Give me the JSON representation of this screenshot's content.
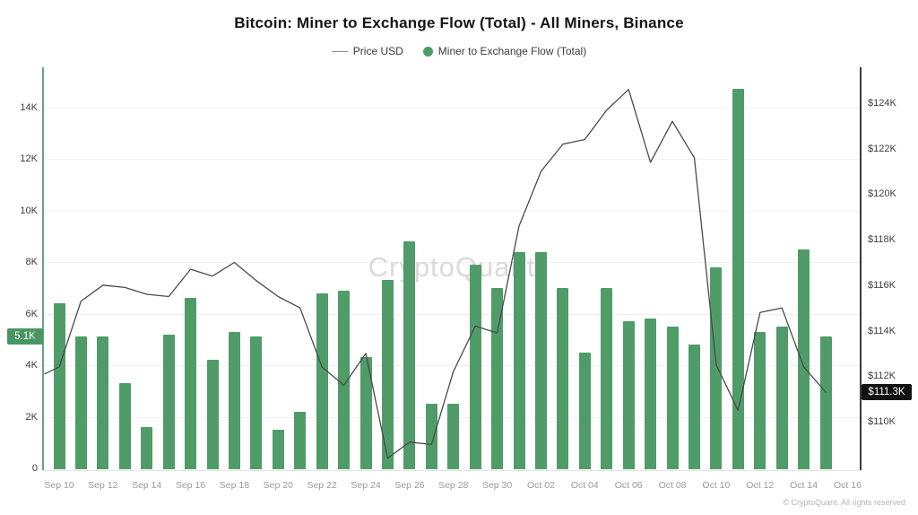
{
  "title": "Bitcoin: Miner to Exchange Flow (Total) - All Miners, Binance",
  "watermark": "CryptoQuant",
  "copyright": "© CryptoQuant. All rights reserved",
  "colors": {
    "bar_green": "#4f9c68",
    "badge_green": "#4a9662",
    "price_line": "#4a4a4a",
    "left_axis_line": "#61a77f",
    "right_axis_line": "#3a3a3a",
    "watermark_gray": "#dadada"
  },
  "legend": [
    {
      "label": "Price USD",
      "marker": "dash",
      "color": "#8a8a8a"
    },
    {
      "label": "Miner to Exchange Flow (Total)",
      "marker": "dot",
      "color": "#4f9c68"
    }
  ],
  "badges": {
    "flow_current": "5.1K",
    "flow_current_value": 5.1,
    "price_current": "$111.3K",
    "price_current_value": 111.3
  },
  "chart_data": {
    "type": "bar+line",
    "title": "Bitcoin: Miner to Exchange Flow (Total) - All Miners, Binance",
    "categories": [
      "Sep 10",
      "Sep 11",
      "Sep 12",
      "Sep 13",
      "Sep 14",
      "Sep 15",
      "Sep 16",
      "Sep 17",
      "Sep 18",
      "Sep 19",
      "Sep 20",
      "Sep 21",
      "Sep 22",
      "Sep 23",
      "Sep 24",
      "Sep 25",
      "Sep 26",
      "Sep 27",
      "Sep 28",
      "Sep 29",
      "Sep 30",
      "Oct 01",
      "Oct 02",
      "Oct 03",
      "Oct 04",
      "Oct 05",
      "Oct 06",
      "Oct 07",
      "Oct 08",
      "Oct 09",
      "Oct 10",
      "Oct 11",
      "Oct 12",
      "Oct 13",
      "Oct 14",
      "Oct 15"
    ],
    "x_tick_labels": [
      "Sep 10",
      "Sep 12",
      "Sep 14",
      "Sep 16",
      "Sep 18",
      "Sep 20",
      "Sep 22",
      "Sep 24",
      "Sep 26",
      "Sep 28",
      "Sep 30",
      "Oct 02",
      "Oct 04",
      "Oct 06",
      "Oct 08",
      "Oct 10",
      "Oct 12",
      "Oct 14",
      "Oct 16"
    ],
    "series": [
      {
        "name": "Miner to Exchange Flow (Total)",
        "type": "bar",
        "axis": "left",
        "unit": "BTC (K)",
        "values": [
          6.4,
          5.1,
          5.1,
          3.3,
          1.6,
          5.2,
          6.6,
          4.2,
          5.3,
          5.1,
          1.5,
          2.2,
          6.8,
          6.9,
          4.3,
          7.3,
          8.8,
          2.5,
          2.5,
          7.9,
          7.0,
          8.4,
          8.4,
          7.0,
          4.5,
          7.0,
          5.7,
          5.8,
          5.5,
          4.8,
          7.8,
          14.7,
          5.3,
          5.5,
          8.5,
          5.1
        ]
      },
      {
        "name": "Price USD",
        "type": "line",
        "axis": "right",
        "unit": "USD (K)",
        "values": [
          112.4,
          115.3,
          116.0,
          115.9,
          115.6,
          115.5,
          116.7,
          116.4,
          117.0,
          116.2,
          115.5,
          115.0,
          112.4,
          111.6,
          113.0,
          108.4,
          109.1,
          109.0,
          112.2,
          114.2,
          113.9,
          118.6,
          121.0,
          122.2,
          122.4,
          123.7,
          124.6,
          121.4,
          123.2,
          121.6,
          112.5,
          110.5,
          114.8,
          115.0,
          112.4,
          111.3
        ]
      }
    ],
    "left_axis": {
      "tick_labels": [
        "0",
        "2K",
        "4K",
        "6K",
        "8K",
        "10K",
        "12K",
        "14K"
      ],
      "tick_values": [
        0,
        2,
        4,
        6,
        8,
        10,
        12,
        14
      ],
      "ylim": [
        0,
        14.7
      ],
      "grid": true
    },
    "right_axis": {
      "tick_labels": [
        "$110K",
        "$112K",
        "$114K",
        "$116K",
        "$118K",
        "$120K",
        "$122K",
        "$124K"
      ],
      "tick_values": [
        110,
        112,
        114,
        116,
        118,
        120,
        122,
        124
      ],
      "ylim": [
        108,
        125
      ],
      "grid": false
    },
    "legend_position": "top"
  }
}
